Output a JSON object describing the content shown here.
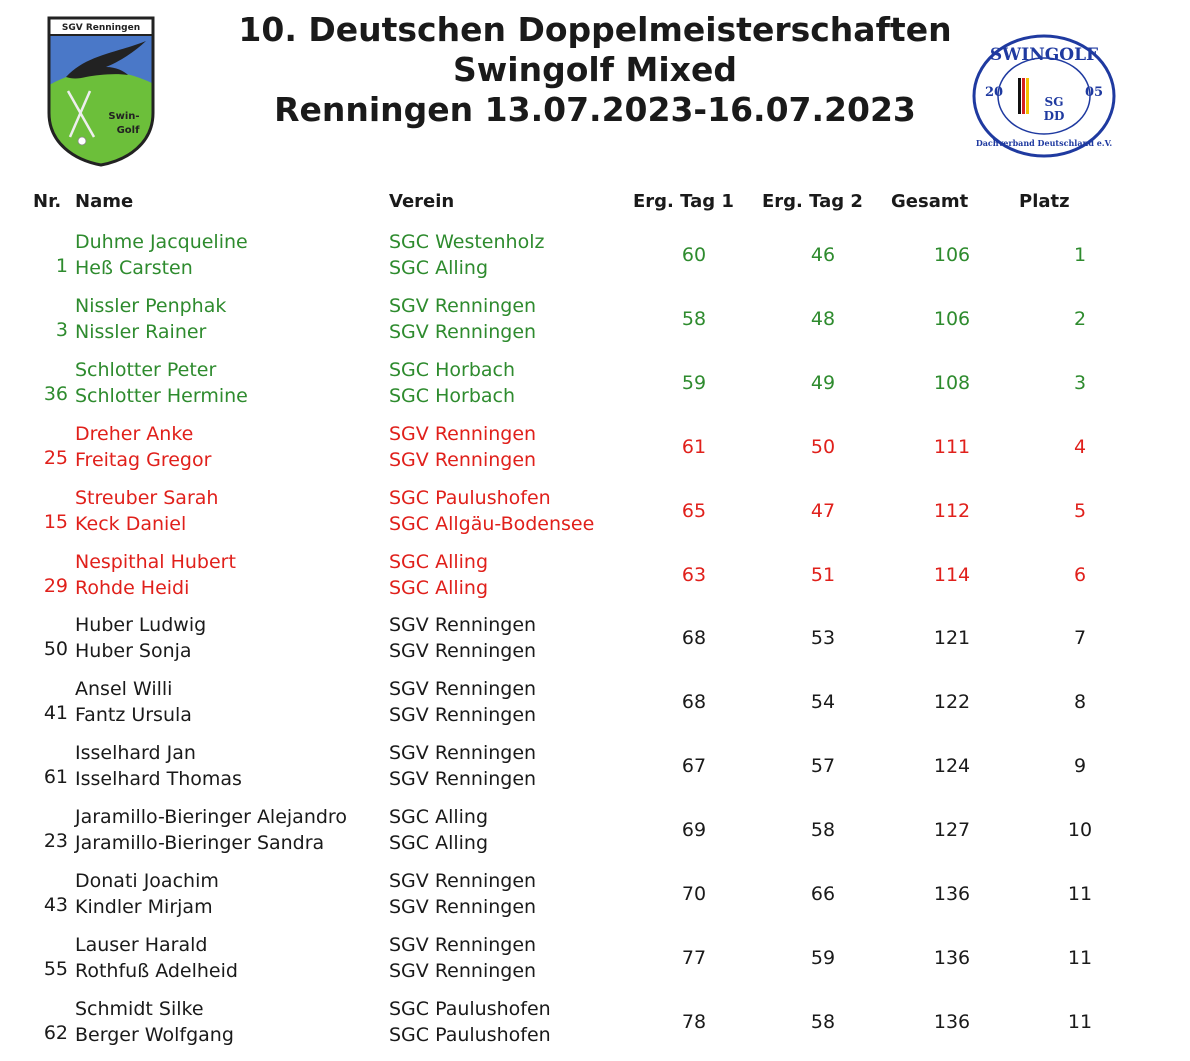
{
  "title": {
    "line1": "10. Deutschen Doppelmeisterschaften",
    "line2": "Swingolf Mixed",
    "line3": "Renningen 13.07.2023-16.07.2023"
  },
  "crest": {
    "club": "SGV Renningen",
    "text1": "Swin-",
    "text2": "Golf",
    "icon": "eagle-crest-icon"
  },
  "seal": {
    "top": "SWINGOLF",
    "left_year": "20",
    "right_year": "05",
    "center1": "SG",
    "center2": "DD",
    "ring": "Dachverband Deutschland e.V.",
    "icon": "swingolf-seal-icon"
  },
  "headers": {
    "nr": "Nr.",
    "name": "Name",
    "verein": "Verein",
    "tag1": "Erg. Tag 1",
    "tag2": "Erg. Tag 2",
    "gesamt": "Gesamt",
    "platz": "Platz"
  },
  "colors": {
    "green": "#2e8b2e",
    "red": "#e0201b",
    "black": "#1a1a1a"
  },
  "rows": [
    {
      "nr": "1",
      "name1": "Duhme Jacqueline",
      "name2": "Heß Carsten",
      "club1": "SGC Westenholz",
      "club2": "SGC Alling",
      "tag1": "60",
      "tag2": "46",
      "total": "106",
      "place": "1",
      "color": "green"
    },
    {
      "nr": "3",
      "name1": "Nissler Penphak",
      "name2": "Nissler Rainer",
      "club1": "SGV Renningen",
      "club2": "SGV Renningen",
      "tag1": "58",
      "tag2": "48",
      "total": "106",
      "place": "2",
      "color": "green"
    },
    {
      "nr": "36",
      "name1": "Schlotter Peter",
      "name2": "Schlotter Hermine",
      "club1": "SGC Horbach",
      "club2": "SGC Horbach",
      "tag1": "59",
      "tag2": "49",
      "total": "108",
      "place": "3",
      "color": "green"
    },
    {
      "nr": "25",
      "name1": "Dreher Anke",
      "name2": "Freitag Gregor",
      "club1": "SGV Renningen",
      "club2": "SGV Renningen",
      "tag1": "61",
      "tag2": "50",
      "total": "111",
      "place": "4",
      "color": "red"
    },
    {
      "nr": "15",
      "name1": "Streuber Sarah",
      "name2": "Keck Daniel",
      "club1": "SGC Paulushofen",
      "club2": "SGC Allgäu-Bodensee",
      "tag1": "65",
      "tag2": "47",
      "total": "112",
      "place": "5",
      "color": "red"
    },
    {
      "nr": "29",
      "name1": "Nespithal Hubert",
      "name2": "Rohde Heidi",
      "club1": "SGC Alling",
      "club2": "SGC Alling",
      "tag1": "63",
      "tag2": "51",
      "total": "114",
      "place": "6",
      "color": "red"
    },
    {
      "nr": "50",
      "name1": "Huber Ludwig",
      "name2": "Huber Sonja",
      "club1": "SGV Renningen",
      "club2": "SGV Renningen",
      "tag1": "68",
      "tag2": "53",
      "total": "121",
      "place": "7",
      "color": "black"
    },
    {
      "nr": "41",
      "name1": "Ansel Willi",
      "name2": "Fantz Ursula",
      "club1": "SGV Renningen",
      "club2": "SGV Renningen",
      "tag1": "68",
      "tag2": "54",
      "total": "122",
      "place": "8",
      "color": "black"
    },
    {
      "nr": "61",
      "name1": "Isselhard Jan",
      "name2": "Isselhard Thomas",
      "club1": "SGV Renningen",
      "club2": "SGV Renningen",
      "tag1": "67",
      "tag2": "57",
      "total": "124",
      "place": "9",
      "color": "black"
    },
    {
      "nr": "23",
      "name1": "Jaramillo-Bieringer Alejandro",
      "name2": "Jaramillo-Bieringer Sandra",
      "club1": "SGC Alling",
      "club2": "SGC Alling",
      "tag1": "69",
      "tag2": "58",
      "total": "127",
      "place": "10",
      "color": "black"
    },
    {
      "nr": "43",
      "name1": "Donati Joachim",
      "name2": "Kindler Mirjam",
      "club1": "SGV Renningen",
      "club2": "SGV Renningen",
      "tag1": "70",
      "tag2": "66",
      "total": "136",
      "place": "11",
      "color": "black"
    },
    {
      "nr": "55",
      "name1": "Lauser Harald",
      "name2": "Rothfuß Adelheid",
      "club1": "SGV Renningen",
      "club2": "SGV Renningen",
      "tag1": "77",
      "tag2": "59",
      "total": "136",
      "place": "11",
      "color": "black"
    },
    {
      "nr": "62",
      "name1": "Schmidt Silke",
      "name2": "Berger Wolfgang",
      "club1": "SGC Paulushofen",
      "club2": "SGC Paulushofen",
      "tag1": "78",
      "tag2": "58",
      "total": "136",
      "place": "11",
      "color": "black"
    }
  ]
}
